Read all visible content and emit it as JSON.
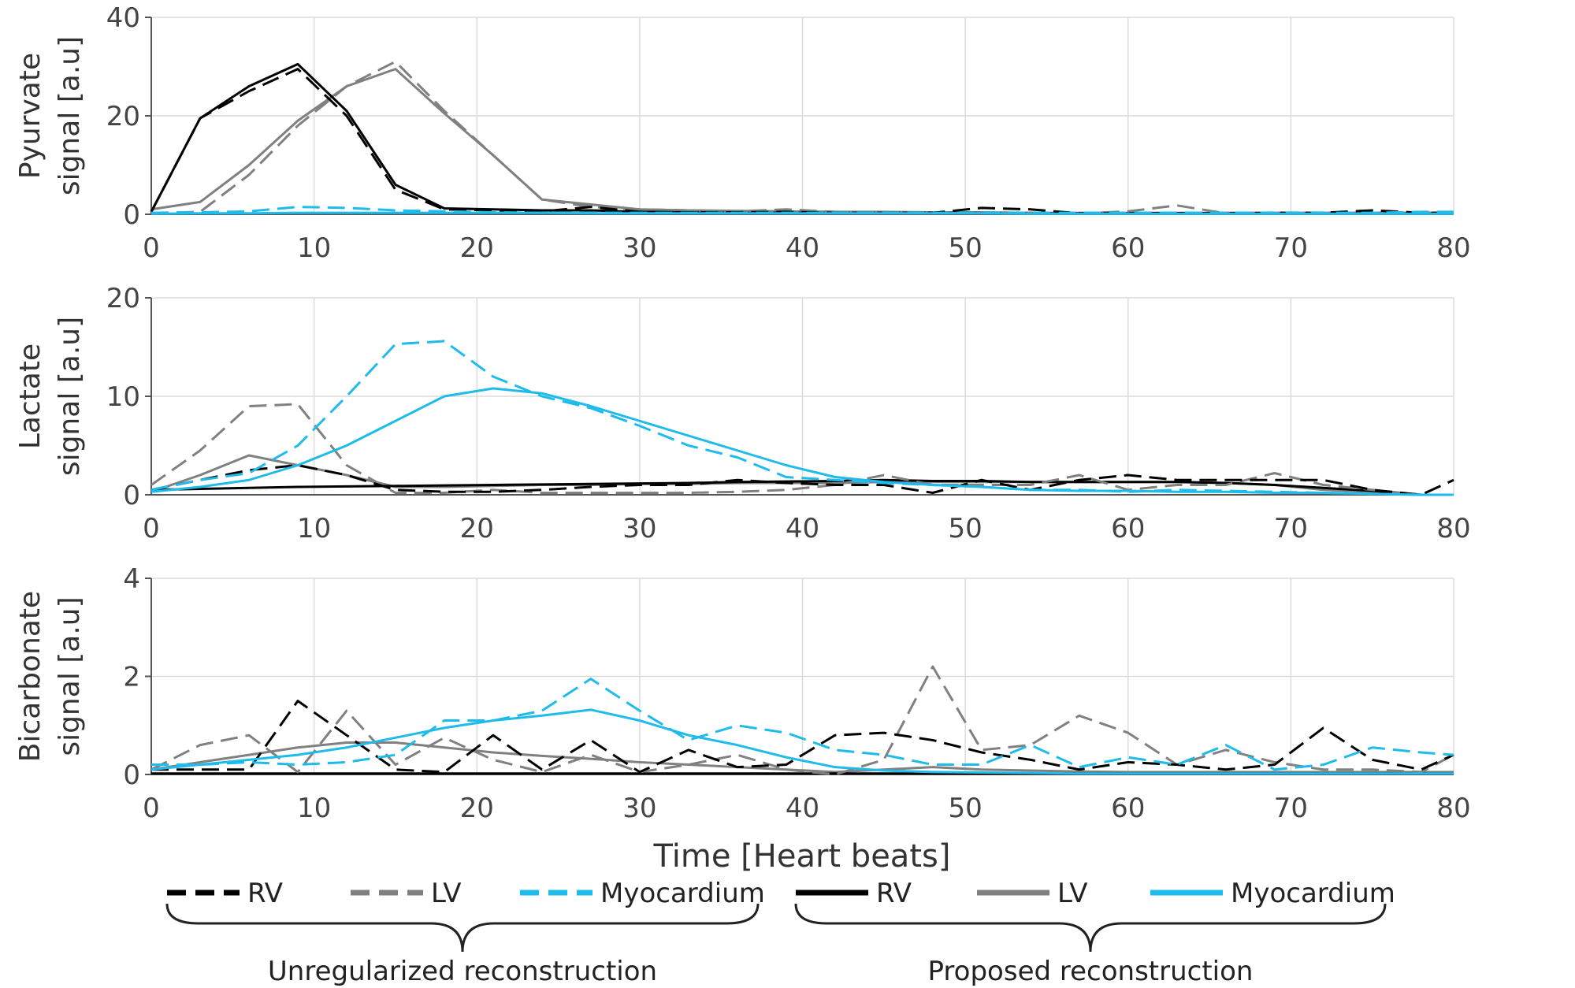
{
  "colors": {
    "RV": "#000000",
    "LV": "#808080",
    "Myocardium": "#1fbbea",
    "grid": "#dcdcdc"
  },
  "chart_data": {
    "type": "line",
    "xlabel": "Time [Heart beats]",
    "xlim": [
      0,
      80
    ],
    "x_ticks": [
      "0",
      "10",
      "20",
      "30",
      "40",
      "50",
      "60",
      "70",
      "80"
    ],
    "x": [
      0,
      3,
      6,
      9,
      12,
      15,
      18,
      21,
      24,
      27,
      30,
      33,
      36,
      39,
      42,
      45,
      48,
      51,
      54,
      57,
      60,
      63,
      66,
      69,
      72,
      75,
      78,
      80
    ],
    "legend": {
      "groups": [
        {
          "label": "Unregularized reconstruction",
          "style": "dashed",
          "entries": [
            "RV",
            "LV",
            "Myocardium"
          ]
        },
        {
          "label": "Proposed reconstruction",
          "style": "solid",
          "entries": [
            "RV",
            "LV",
            "Myocardium"
          ]
        }
      ],
      "placement": "bottom"
    },
    "panels": [
      {
        "ylabel_line1": "Pyurvate",
        "ylabel_line2": "signal [a.u]",
        "ylim": [
          0,
          40
        ],
        "y_ticks": [
          "0",
          "20",
          "40"
        ],
        "series": [
          {
            "name": "RV",
            "recon": "Unregularized",
            "values": [
              0.5,
              19.5,
              25,
              29.5,
              20,
              5,
              1,
              0.8,
              0.6,
              1.5,
              0.5,
              0.4,
              0.4,
              0.5,
              0.3,
              0.3,
              0.3,
              1.3,
              1,
              0.2,
              0.2,
              0.2,
              0.2,
              0.3,
              0.3,
              0.8,
              0.3,
              0.3
            ]
          },
          {
            "name": "LV",
            "recon": "Unregularized",
            "values": [
              0.2,
              0.5,
              8,
              18,
              26,
              31,
              21,
              12,
              3,
              1.5,
              1,
              0.8,
              0.6,
              1,
              0.5,
              0.4,
              0.3,
              0.3,
              0.3,
              0.2,
              0.6,
              1.8,
              0.2,
              0.3,
              0.3,
              0.3,
              0.3,
              0.3
            ]
          },
          {
            "name": "Myocardium",
            "recon": "Unregularized",
            "values": [
              0.3,
              0.4,
              0.6,
              1.5,
              1.3,
              0.8,
              0.6,
              0.4,
              0.3,
              0.3,
              0.3,
              0.3,
              0.3,
              0.3,
              0.3,
              0.3,
              0.3,
              0.3,
              0.3,
              0.3,
              0.3,
              0.3,
              0.3,
              0.3,
              0.3,
              0.3,
              0.5,
              0.5
            ]
          },
          {
            "name": "RV",
            "recon": "Proposed",
            "values": [
              0.5,
              19.5,
              26,
              30.5,
              21,
              6,
              1.2,
              1,
              0.8,
              0.8,
              0.5,
              0.4,
              0.3,
              0.3,
              0.3,
              0.3,
              0.3,
              0.3,
              0.2,
              0.2,
              0.2,
              0.2,
              0.2,
              0.2,
              0.2,
              0.2,
              0.2,
              0.2
            ]
          },
          {
            "name": "LV",
            "recon": "Proposed",
            "values": [
              1,
              2.5,
              10,
              19,
              26,
              29.5,
              20.5,
              12,
              3,
              2,
              1,
              0.8,
              0.7,
              0.6,
              0.5,
              0.5,
              0.4,
              0.4,
              0.3,
              0.3,
              0.3,
              0.3,
              0.3,
              0.3,
              0.3,
              0.3,
              0.3,
              0.3
            ]
          },
          {
            "name": "Myocardium",
            "recon": "Proposed",
            "values": [
              0.1,
              0.2,
              0.2,
              0.3,
              0.3,
              0.3,
              0.3,
              0.3,
              0.3,
              0.2,
              0.2,
              0.2,
              0.2,
              0.2,
              0.2,
              0.2,
              0.2,
              0.2,
              0.1,
              0.1,
              0.1,
              0.1,
              0.1,
              0.1,
              0.1,
              0.1,
              0.1,
              0.1
            ]
          }
        ]
      },
      {
        "ylabel_line1": "Lactate",
        "ylabel_line2": "signal [a.u]",
        "ylim": [
          0,
          20
        ],
        "y_ticks": [
          "0",
          "10",
          "20"
        ],
        "series": [
          {
            "name": "RV",
            "recon": "Unregularized",
            "values": [
              0.5,
              1.5,
              2.5,
              3,
              2,
              0.5,
              0.3,
              0.3,
              0.5,
              0.8,
              1,
              1,
              1.5,
              1.2,
              1,
              1,
              0.2,
              1.5,
              0.5,
              1.5,
              2,
              1.5,
              1.5,
              1.5,
              1.5,
              0.5,
              0,
              1.5
            ]
          },
          {
            "name": "LV",
            "recon": "Unregularized",
            "values": [
              1,
              4.5,
              9,
              9.2,
              3,
              0.2,
              0.2,
              0.5,
              0.2,
              0.2,
              0.2,
              0.2,
              0.3,
              0.5,
              1,
              2,
              1,
              1,
              1,
              2,
              0.5,
              1,
              1,
              2.2,
              1,
              0.5,
              0,
              0
            ]
          },
          {
            "name": "Myocardium",
            "recon": "Unregularized",
            "values": [
              0.5,
              1.5,
              2.2,
              5,
              10,
              15.3,
              15.6,
              12,
              10,
              8.8,
              7,
              5,
              3.8,
              1.8,
              1.5,
              1.2,
              1,
              0.8,
              0.5,
              0.5,
              0.3,
              0.5,
              0.4,
              0.3,
              0.2,
              0.1,
              0,
              0
            ]
          },
          {
            "name": "RV",
            "recon": "Proposed",
            "values": [
              0.5,
              0.6,
              0.7,
              0.8,
              0.85,
              0.9,
              0.95,
              1,
              1.05,
              1.1,
              1.15,
              1.2,
              1.3,
              1.35,
              1.4,
              1.5,
              1.4,
              1.4,
              1.3,
              1.3,
              1.3,
              1.3,
              1.2,
              1,
              0.7,
              0.4,
              0,
              0
            ]
          },
          {
            "name": "LV",
            "recon": "Proposed",
            "values": [
              0.3,
              2,
              4,
              3,
              2,
              0.8,
              0.8,
              0.9,
              1,
              1,
              1.1,
              1.1,
              1.2,
              1.2,
              1.2,
              1.3,
              1.3,
              1.3,
              1.3,
              1.3,
              1.3,
              1.3,
              1.2,
              1,
              0.5,
              0.3,
              0,
              0
            ]
          },
          {
            "name": "Myocardium",
            "recon": "Proposed",
            "values": [
              0.3,
              0.8,
              1.5,
              3,
              5,
              7.5,
              10,
              10.8,
              10.3,
              9,
              7.5,
              6,
              4.5,
              3,
              1.8,
              1.3,
              1,
              0.8,
              0.5,
              0.4,
              0.4,
              0.3,
              0.3,
              0.2,
              0.2,
              0.1,
              0,
              0
            ]
          }
        ]
      },
      {
        "ylabel_line1": "Bicarbonate",
        "ylabel_line2": "signal [a.u]",
        "ylim": [
          0,
          4
        ],
        "y_ticks": [
          "0",
          "2",
          "4"
        ],
        "series": [
          {
            "name": "RV",
            "recon": "Unregularized",
            "values": [
              0.1,
              0.1,
              0.1,
              1.5,
              0.8,
              0.1,
              0.05,
              0.8,
              0.1,
              0.7,
              0.05,
              0.5,
              0.15,
              0.2,
              0.8,
              0.85,
              0.7,
              0.45,
              0.3,
              0.1,
              0.25,
              0.2,
              0.1,
              0.2,
              0.95,
              0.3,
              0.1,
              0.4
            ]
          },
          {
            "name": "LV",
            "recon": "Unregularized",
            "values": [
              0.1,
              0.6,
              0.8,
              0.05,
              1.3,
              0.2,
              0.75,
              0.3,
              0.05,
              0.4,
              0.05,
              0.2,
              0.4,
              0.1,
              0,
              0.3,
              2.2,
              0.5,
              0.6,
              1.2,
              0.85,
              0.2,
              0.5,
              0.25,
              0.1,
              0.1,
              0.05,
              0.4
            ]
          },
          {
            "name": "Myocardium",
            "recon": "Unregularized",
            "values": [
              0.2,
              0.2,
              0.25,
              0.2,
              0.25,
              0.4,
              1.1,
              1.1,
              1.3,
              1.95,
              1.3,
              0.7,
              1,
              0.85,
              0.5,
              0.4,
              0.2,
              0.2,
              0.6,
              0.15,
              0.35,
              0.2,
              0.6,
              0.1,
              0.2,
              0.55,
              0.45,
              0.4
            ]
          },
          {
            "name": "RV",
            "recon": "Proposed",
            "values": [
              0.02,
              0.02,
              0.02,
              0.02,
              0.02,
              0.02,
              0.02,
              0.02,
              0.02,
              0.02,
              0.02,
              0.02,
              0.02,
              0.02,
              0.02,
              0.02,
              0.02,
              0.02,
              0.02,
              0.02,
              0.02,
              0.02,
              0.02,
              0.02,
              0.02,
              0.02,
              0.02,
              0.02
            ]
          },
          {
            "name": "LV",
            "recon": "Proposed",
            "values": [
              0.1,
              0.25,
              0.4,
              0.55,
              0.65,
              0.65,
              0.55,
              0.45,
              0.38,
              0.32,
              0.25,
              0.2,
              0.15,
              0.1,
              0.05,
              0.1,
              0.15,
              0.1,
              0.08,
              0.06,
              0.05,
              0.05,
              0.05,
              0.05,
              0.05,
              0.05,
              0.05,
              0.05
            ]
          },
          {
            "name": "Myocardium",
            "recon": "Proposed",
            "values": [
              0.1,
              0.2,
              0.3,
              0.4,
              0.55,
              0.75,
              0.95,
              1.1,
              1.2,
              1.32,
              1.1,
              0.8,
              0.6,
              0.35,
              0.15,
              0.08,
              0.05,
              0.04,
              0.03,
              0.02,
              0.02,
              0.02,
              0.02,
              0.02,
              0.02,
              0.02,
              0.02,
              0.02
            ]
          }
        ]
      }
    ]
  }
}
